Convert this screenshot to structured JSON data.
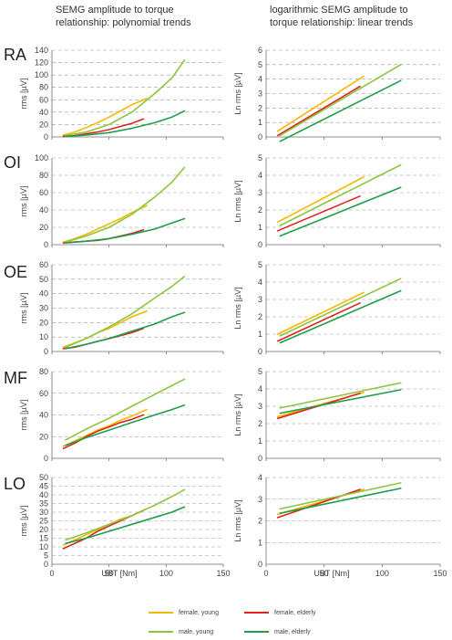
{
  "column_titles": {
    "left": [
      "SEMG amplitude to torque",
      "relationship: polynomial trends"
    ],
    "right": [
      "logarithmic SEMG amplitude to",
      "torque relationship: linear trends"
    ]
  },
  "row_labels": [
    "RA",
    "OI",
    "OE",
    "MF",
    "LO"
  ],
  "xlabel": "UBT [Nm]",
  "ylabel_left": "rms [µV]",
  "ylabel_right": "Ln rms [µV]",
  "xticks": [
    0,
    50,
    100,
    150
  ],
  "legend": [
    {
      "label": "female, young",
      "color": "#F5B800"
    },
    {
      "label": "female, elderly",
      "color": "#E0231E"
    },
    {
      "label": "male, young",
      "color": "#8CC63F"
    },
    {
      "label": "male, elderly",
      "color": "#1E9E4A"
    }
  ],
  "chart_data": [
    {
      "type": "line",
      "muscle": "RA",
      "side": "left",
      "xlim": [
        0,
        150
      ],
      "ylim": [
        0,
        140
      ],
      "yticks": [
        0,
        20,
        40,
        60,
        80,
        100,
        120,
        140
      ],
      "series": [
        {
          "name": "female, young",
          "color": "#F5B800",
          "x": [
            10,
            20,
            30,
            40,
            50,
            60,
            70,
            83
          ],
          "y": [
            3,
            8,
            15,
            23,
            32,
            42,
            52,
            62
          ]
        },
        {
          "name": "female, elderly",
          "color": "#E0231E",
          "x": [
            10,
            20,
            30,
            40,
            50,
            60,
            70,
            80
          ],
          "y": [
            1,
            2,
            5,
            8,
            12,
            17,
            22,
            29
          ]
        },
        {
          "name": "male, young",
          "color": "#8CC63F",
          "x": [
            12,
            30,
            50,
            70,
            90,
            105,
            116
          ],
          "y": [
            2,
            8,
            20,
            40,
            70,
            95,
            124
          ]
        },
        {
          "name": "male, elderly",
          "color": "#1E9E4A",
          "x": [
            12,
            30,
            50,
            70,
            90,
            105,
            116
          ],
          "y": [
            1,
            3,
            7,
            14,
            23,
            32,
            42
          ]
        }
      ]
    },
    {
      "type": "line",
      "muscle": "RA",
      "side": "right",
      "xlim": [
        0,
        150
      ],
      "ylim": [
        0,
        6
      ],
      "yticks": [
        0,
        1,
        2,
        3,
        4,
        5,
        6
      ],
      "series": [
        {
          "name": "female, young",
          "color": "#F5B800",
          "x": [
            10,
            84
          ],
          "y": [
            0.4,
            4.2
          ]
        },
        {
          "name": "female, elderly",
          "color": "#E0231E",
          "x": [
            10,
            81
          ],
          "y": [
            0.1,
            3.5
          ]
        },
        {
          "name": "male, young",
          "color": "#8CC63F",
          "x": [
            12,
            116
          ],
          "y": [
            0.1,
            5.0
          ]
        },
        {
          "name": "male, elderly",
          "color": "#1E9E4A",
          "x": [
            12,
            116
          ],
          "y": [
            -0.3,
            3.9
          ]
        }
      ]
    },
    {
      "type": "line",
      "muscle": "OI",
      "side": "left",
      "xlim": [
        0,
        150
      ],
      "ylim": [
        0,
        100
      ],
      "yticks": [
        0,
        20,
        40,
        60,
        80,
        100
      ],
      "series": [
        {
          "name": "female, young",
          "color": "#F5B800",
          "x": [
            10,
            20,
            30,
            40,
            50,
            60,
            70,
            83
          ],
          "y": [
            3,
            7,
            12,
            18,
            24,
            30,
            37,
            45
          ]
        },
        {
          "name": "female, elderly",
          "color": "#E0231E",
          "x": [
            10,
            20,
            30,
            40,
            50,
            60,
            70,
            80
          ],
          "y": [
            2,
            3,
            4,
            5,
            7,
            10,
            13,
            17
          ]
        },
        {
          "name": "male, young",
          "color": "#8CC63F",
          "x": [
            12,
            30,
            50,
            70,
            90,
            105,
            116
          ],
          "y": [
            3,
            10,
            20,
            35,
            55,
            72,
            89
          ]
        },
        {
          "name": "male, elderly",
          "color": "#1E9E4A",
          "x": [
            12,
            30,
            50,
            70,
            90,
            105,
            116
          ],
          "y": [
            2,
            4,
            7,
            12,
            18,
            25,
            30
          ]
        }
      ]
    },
    {
      "type": "line",
      "muscle": "OI",
      "side": "right",
      "xlim": [
        0,
        150
      ],
      "ylim": [
        0,
        5
      ],
      "yticks": [
        0,
        1,
        2,
        3,
        4,
        5
      ],
      "series": [
        {
          "name": "female, young",
          "color": "#F5B800",
          "x": [
            10,
            84
          ],
          "y": [
            1.3,
            3.9
          ]
        },
        {
          "name": "female, elderly",
          "color": "#E0231E",
          "x": [
            10,
            81
          ],
          "y": [
            0.8,
            2.8
          ]
        },
        {
          "name": "male, young",
          "color": "#8CC63F",
          "x": [
            12,
            116
          ],
          "y": [
            1.1,
            4.6
          ]
        },
        {
          "name": "male, elderly",
          "color": "#1E9E4A",
          "x": [
            12,
            116
          ],
          "y": [
            0.5,
            3.3
          ]
        }
      ]
    },
    {
      "type": "line",
      "muscle": "OE",
      "side": "left",
      "xlim": [
        0,
        150
      ],
      "ylim": [
        0,
        60
      ],
      "yticks": [
        0,
        10,
        20,
        30,
        40,
        50,
        60
      ],
      "series": [
        {
          "name": "female, young",
          "color": "#F5B800",
          "x": [
            10,
            20,
            30,
            40,
            50,
            60,
            70,
            83
          ],
          "y": [
            3,
            6,
            9,
            13,
            16,
            20,
            24,
            28
          ]
        },
        {
          "name": "female, elderly",
          "color": "#E0231E",
          "x": [
            10,
            20,
            30,
            40,
            50,
            60,
            70,
            80
          ],
          "y": [
            2,
            3,
            5,
            7,
            9,
            11,
            13,
            16
          ]
        },
        {
          "name": "male, young",
          "color": "#8CC63F",
          "x": [
            12,
            30,
            50,
            70,
            90,
            105,
            116
          ],
          "y": [
            3,
            9,
            17,
            26,
            37,
            45,
            52
          ]
        },
        {
          "name": "male, elderly",
          "color": "#1E9E4A",
          "x": [
            12,
            30,
            50,
            70,
            90,
            105,
            116
          ],
          "y": [
            2,
            5,
            9,
            14,
            19,
            24,
            27
          ]
        }
      ]
    },
    {
      "type": "line",
      "muscle": "OE",
      "side": "right",
      "xlim": [
        0,
        150
      ],
      "ylim": [
        0,
        5
      ],
      "yticks": [
        0,
        1,
        2,
        3,
        4,
        5
      ],
      "series": [
        {
          "name": "female, young",
          "color": "#F5B800",
          "x": [
            10,
            84
          ],
          "y": [
            1.0,
            3.4
          ]
        },
        {
          "name": "female, elderly",
          "color": "#E0231E",
          "x": [
            10,
            81
          ],
          "y": [
            0.6,
            2.8
          ]
        },
        {
          "name": "male, young",
          "color": "#8CC63F",
          "x": [
            12,
            116
          ],
          "y": [
            0.9,
            4.2
          ]
        },
        {
          "name": "male, elderly",
          "color": "#1E9E4A",
          "x": [
            12,
            116
          ],
          "y": [
            0.5,
            3.5
          ]
        }
      ]
    },
    {
      "type": "line",
      "muscle": "MF",
      "side": "left",
      "xlim": [
        0,
        150
      ],
      "ylim": [
        0,
        80
      ],
      "yticks": [
        0,
        20,
        40,
        60,
        80
      ],
      "series": [
        {
          "name": "female, young",
          "color": "#F5B800",
          "x": [
            10,
            20,
            30,
            40,
            50,
            60,
            70,
            83
          ],
          "y": [
            11,
            16,
            21,
            26,
            30,
            35,
            39,
            45
          ]
        },
        {
          "name": "female, elderly",
          "color": "#E0231E",
          "x": [
            10,
            20,
            30,
            40,
            50,
            60,
            70,
            80
          ],
          "y": [
            9,
            14,
            20,
            25,
            29,
            33,
            36,
            40
          ]
        },
        {
          "name": "male, young",
          "color": "#8CC63F",
          "x": [
            12,
            30,
            50,
            70,
            90,
            105,
            116
          ],
          "y": [
            17,
            27,
            37,
            48,
            59,
            67,
            73
          ]
        },
        {
          "name": "male, elderly",
          "color": "#1E9E4A",
          "x": [
            12,
            30,
            50,
            70,
            90,
            105,
            116
          ],
          "y": [
            12,
            19,
            26,
            33,
            40,
            45,
            49
          ]
        }
      ]
    },
    {
      "type": "line",
      "muscle": "MF",
      "side": "right",
      "xlim": [
        0,
        150
      ],
      "ylim": [
        0,
        5
      ],
      "yticks": [
        0,
        1,
        2,
        3,
        4,
        5
      ],
      "series": [
        {
          "name": "female, young",
          "color": "#F5B800",
          "x": [
            10,
            84
          ],
          "y": [
            2.4,
            3.8
          ]
        },
        {
          "name": "female, elderly",
          "color": "#E0231E",
          "x": [
            10,
            81
          ],
          "y": [
            2.3,
            3.75
          ]
        },
        {
          "name": "male, young",
          "color": "#8CC63F",
          "x": [
            12,
            116
          ],
          "y": [
            2.9,
            4.35
          ]
        },
        {
          "name": "male, elderly",
          "color": "#1E9E4A",
          "x": [
            12,
            116
          ],
          "y": [
            2.6,
            3.95
          ]
        }
      ]
    },
    {
      "type": "line",
      "muscle": "LO",
      "side": "left",
      "xlim": [
        0,
        150
      ],
      "ylim": [
        0,
        50
      ],
      "yticks": [
        0,
        5,
        10,
        15,
        20,
        25,
        30,
        35,
        40,
        45,
        50
      ],
      "series": [
        {
          "name": "female, young",
          "color": "#F5B800",
          "x": [
            10,
            20,
            30,
            40,
            50,
            60,
            70,
            83
          ],
          "y": [
            11,
            14,
            17,
            20,
            23,
            26,
            28,
            32
          ]
        },
        {
          "name": "female, elderly",
          "color": "#E0231E",
          "x": [
            10,
            20,
            30,
            40,
            50,
            60,
            70,
            80
          ],
          "y": [
            9,
            12,
            15,
            19,
            22,
            25,
            28,
            31
          ]
        },
        {
          "name": "male, young",
          "color": "#8CC63F",
          "x": [
            12,
            30,
            50,
            70,
            90,
            105,
            116
          ],
          "y": [
            14,
            18,
            23,
            28,
            34,
            39,
            43
          ]
        },
        {
          "name": "male, elderly",
          "color": "#1E9E4A",
          "x": [
            12,
            30,
            50,
            70,
            90,
            105,
            116
          ],
          "y": [
            12,
            15,
            19,
            23,
            27,
            30,
            33
          ]
        }
      ]
    },
    {
      "type": "line",
      "muscle": "LO",
      "side": "right",
      "xlim": [
        0,
        150
      ],
      "ylim": [
        0,
        4
      ],
      "yticks": [
        0,
        1,
        2,
        3,
        4
      ],
      "series": [
        {
          "name": "female, young",
          "color": "#F5B800",
          "x": [
            10,
            84
          ],
          "y": [
            2.3,
            3.45
          ]
        },
        {
          "name": "female, elderly",
          "color": "#E0231E",
          "x": [
            10,
            81
          ],
          "y": [
            2.15,
            3.45
          ]
        },
        {
          "name": "male, young",
          "color": "#8CC63F",
          "x": [
            12,
            116
          ],
          "y": [
            2.55,
            3.75
          ]
        },
        {
          "name": "male, elderly",
          "color": "#1E9E4A",
          "x": [
            12,
            116
          ],
          "y": [
            2.35,
            3.5
          ]
        }
      ]
    }
  ]
}
